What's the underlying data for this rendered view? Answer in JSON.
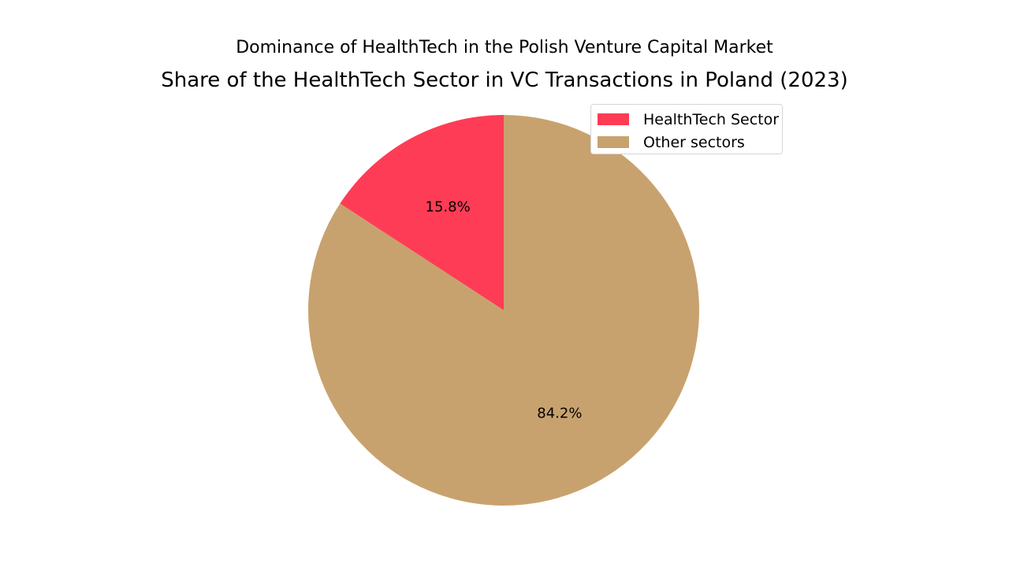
{
  "chart_data": {
    "type": "pie",
    "suptitle": "Dominance of HealthTech in the Polish Venture Capital Market",
    "title": "Share of the HealthTech Sector in VC Transactions in Poland (2023)",
    "slices": [
      {
        "label": "HealthTech Sector",
        "value": 15.8,
        "display": "15.8%",
        "color": "#FF3C55"
      },
      {
        "label": "Other sectors",
        "value": 84.2,
        "display": "84.2%",
        "color": "#C8A26E"
      }
    ],
    "start_angle_deg": 90,
    "direction": "counterclockwise",
    "legend": {
      "placement": "top-right",
      "entries": [
        "HealthTech Sector",
        "Other sectors"
      ]
    }
  }
}
